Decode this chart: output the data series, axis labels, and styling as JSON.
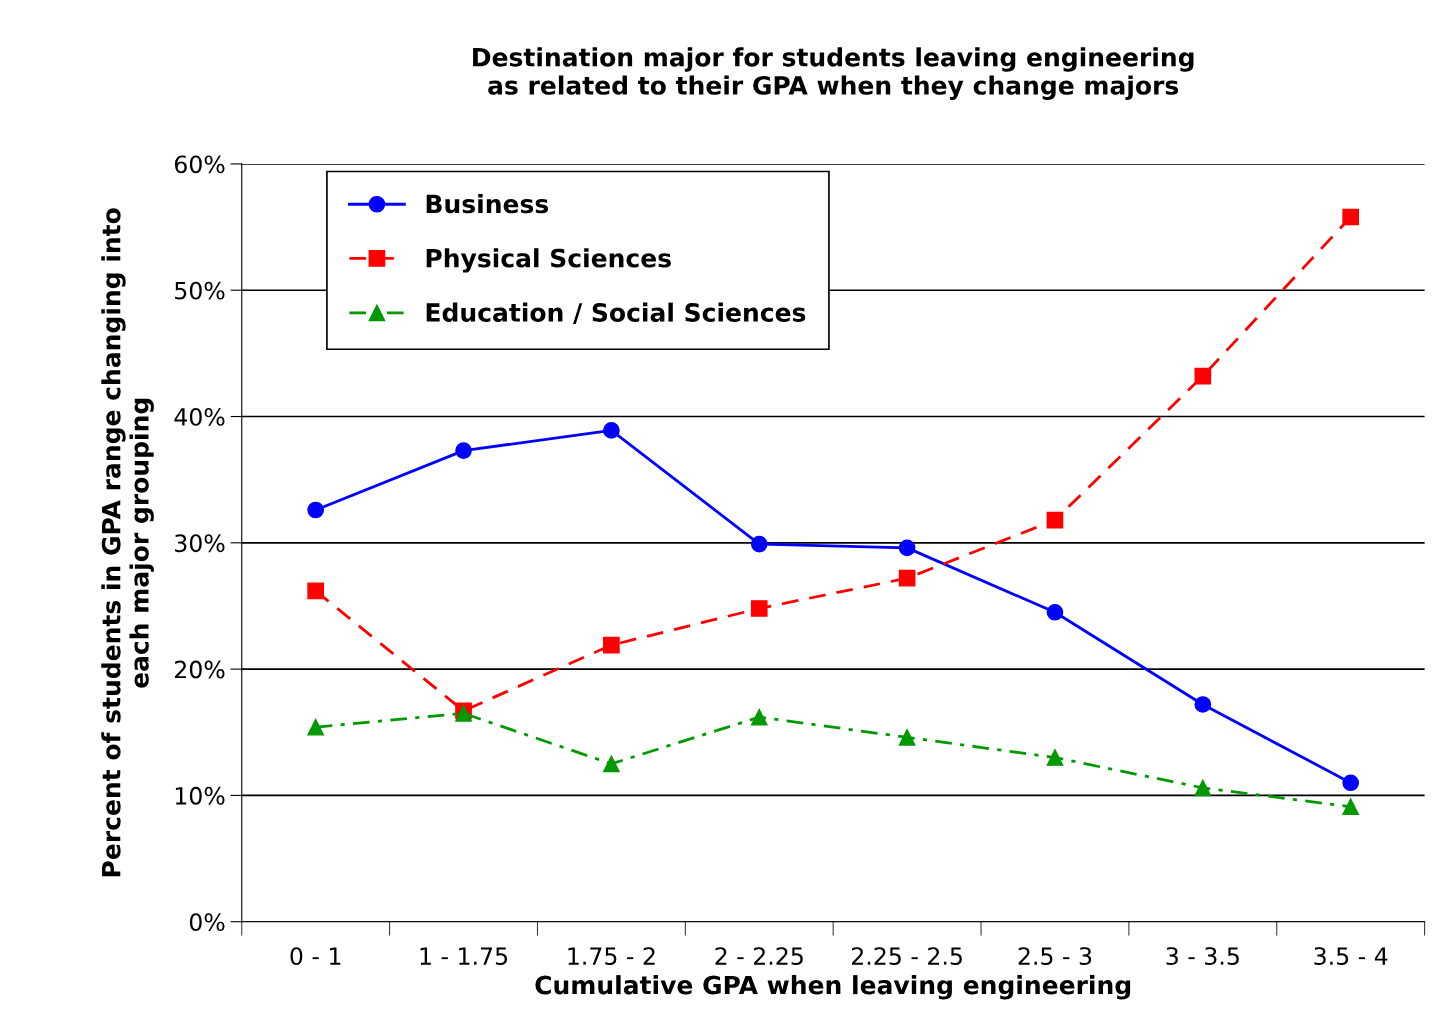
{
  "chart_data": {
    "type": "line",
    "title": "Destination major for students leaving engineering\nas related to their GPA when they change majors",
    "xlabel": "Cumulative GPA when leaving engineering",
    "ylabel": "Percent of students in GPA range changing into\neach major grouping",
    "categories": [
      "0 - 1",
      "1 - 1.75",
      "1.75 - 2",
      "2 - 2.25",
      "2.25 - 2.5",
      "2.5 - 3",
      "3 - 3.5",
      "3.5 - 4"
    ],
    "series": [
      {
        "name": "Business",
        "color": "#0000ff",
        "marker": "circle",
        "line_style": "solid",
        "values": [
          32.6,
          37.3,
          38.9,
          29.9,
          29.6,
          24.5,
          17.2,
          11.0
        ]
      },
      {
        "name": "Physical Sciences",
        "color": "#ff0000",
        "marker": "square",
        "line_style": "dashed",
        "values": [
          26.2,
          16.7,
          21.9,
          24.8,
          27.2,
          31.8,
          43.2,
          55.8
        ]
      },
      {
        "name": "Education / Social Sciences",
        "color": "#009900",
        "marker": "triangle",
        "line_style": "dashdot",
        "values": [
          15.4,
          16.5,
          12.5,
          16.2,
          14.6,
          13.0,
          10.6,
          9.1
        ]
      }
    ],
    "ylim": [
      0,
      60
    ],
    "yticks": [
      {
        "value": 0,
        "label": "0%"
      },
      {
        "value": 10,
        "label": "10%"
      },
      {
        "value": 20,
        "label": "20%"
      },
      {
        "value": 30,
        "label": "30%"
      },
      {
        "value": 40,
        "label": "40%"
      },
      {
        "value": 50,
        "label": "50%"
      },
      {
        "value": 60,
        "label": "60%"
      }
    ],
    "grid": "y",
    "legend": "top left"
  }
}
